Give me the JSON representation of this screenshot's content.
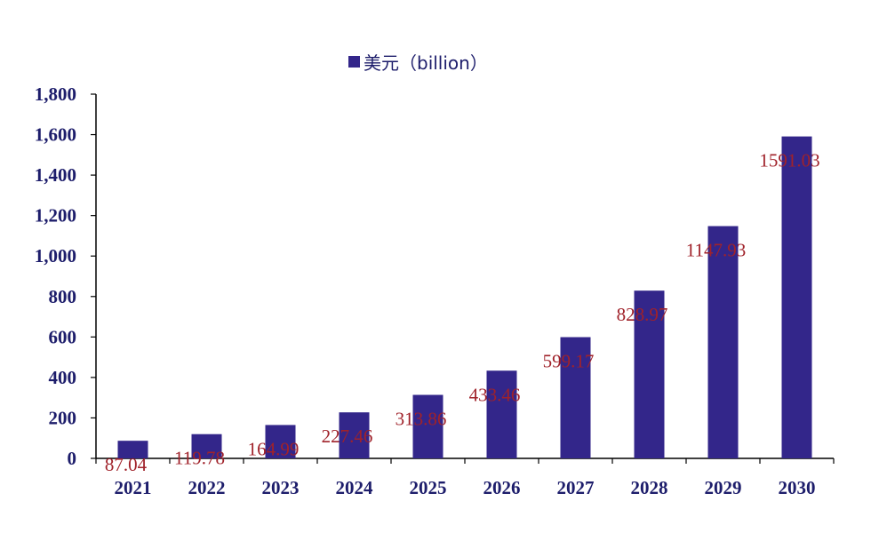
{
  "chart_data": {
    "type": "bar",
    "title": "",
    "xlabel": "",
    "ylabel": "",
    "categories": [
      "2021",
      "2022",
      "2023",
      "2024",
      "2025",
      "2026",
      "2027",
      "2028",
      "2029",
      "2030"
    ],
    "series": [
      {
        "name": "美元（billion）",
        "values": [
          87.04,
          119.78,
          164.99,
          227.46,
          313.86,
          433.46,
          599.17,
          828.97,
          1147.93,
          1591.03
        ],
        "data_labels": [
          "87.04",
          "119.78",
          "164.99",
          "227.46",
          "313.86",
          "433.46",
          "599.17",
          "828.97",
          "1147.93",
          "1591.03"
        ]
      }
    ],
    "ylim": [
      0,
      1800
    ],
    "yticks": [
      0,
      200,
      400,
      600,
      800,
      1000,
      1200,
      1400,
      1600,
      1800
    ],
    "ytick_labels": [
      "0",
      "200",
      "400",
      "600",
      "800",
      "1,000",
      "1,200",
      "1,400",
      "1,600",
      "1,800"
    ],
    "grid": false,
    "legend": {
      "position": "top-center",
      "label": "美元（billion）"
    },
    "colors": {
      "bar": "#33268a",
      "data_label": "#a0222a",
      "axis_text": "#1d1d6b"
    }
  }
}
